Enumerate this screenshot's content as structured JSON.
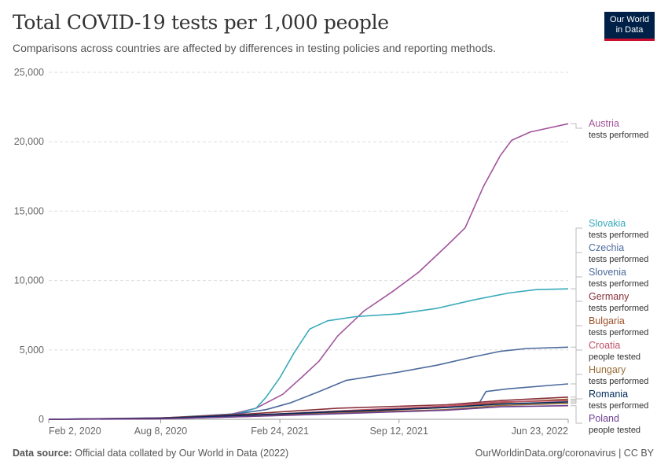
{
  "header": {
    "title": "Total COVID-19 tests per 1,000 people",
    "subtitle": "Comparisons across countries are affected by differences in testing policies and reporting methods."
  },
  "logo": {
    "line1": "Our World",
    "line2": "in Data",
    "bg": "#002147",
    "accent": "#c8102e"
  },
  "footer": {
    "source_label": "Data source:",
    "source_text": "Official data collated by Our World in Data (2022)",
    "right_text": "OurWorldinData.org/coronavirus | CC BY"
  },
  "chart_data": {
    "type": "line",
    "title": "Total COVID-19 tests per 1,000 people",
    "x_ticks": [
      "Feb 2, 2020",
      "Aug 8, 2020",
      "Feb 24, 2021",
      "Sep 12, 2021",
      "Jun 23, 2022"
    ],
    "x_range": [
      "2020-02-02",
      "2022-06-23"
    ],
    "y_ticks": [
      "0",
      "5,000",
      "10,000",
      "15,000",
      "20,000",
      "25,000"
    ],
    "ylim": [
      0,
      25000
    ],
    "grid": true,
    "legend": "right-end labels",
    "series": [
      {
        "name": "Austria",
        "sublabel": "tests performed",
        "color": "#a2559c",
        "points": [
          [
            "2020-02-02",
            0
          ],
          [
            "2020-06-01",
            40
          ],
          [
            "2020-09-01",
            110
          ],
          [
            "2020-12-01",
            330
          ],
          [
            "2021-01-15",
            800
          ],
          [
            "2021-03-01",
            1800
          ],
          [
            "2021-04-01",
            3000
          ],
          [
            "2021-05-01",
            4200
          ],
          [
            "2021-06-01",
            6000
          ],
          [
            "2021-07-15",
            7800
          ],
          [
            "2021-09-01",
            9200
          ],
          [
            "2021-10-15",
            10600
          ],
          [
            "2021-12-01",
            12500
          ],
          [
            "2022-01-01",
            13800
          ],
          [
            "2022-02-01",
            16800
          ],
          [
            "2022-03-01",
            19000
          ],
          [
            "2022-03-20",
            20100
          ],
          [
            "2022-04-20",
            20700
          ],
          [
            "2022-06-23",
            21300
          ]
        ]
      },
      {
        "name": "Slovakia",
        "sublabel": "tests performed",
        "color": "#38aaba",
        "points": [
          [
            "2020-02-02",
            0
          ],
          [
            "2020-08-01",
            70
          ],
          [
            "2020-12-15",
            400
          ],
          [
            "2021-01-15",
            800
          ],
          [
            "2021-02-01",
            1600
          ],
          [
            "2021-02-24",
            3000
          ],
          [
            "2021-03-20",
            4800
          ],
          [
            "2021-04-15",
            6500
          ],
          [
            "2021-05-15",
            7100
          ],
          [
            "2021-07-01",
            7400
          ],
          [
            "2021-09-12",
            7600
          ],
          [
            "2021-11-15",
            8000
          ],
          [
            "2022-01-15",
            8600
          ],
          [
            "2022-03-15",
            9100
          ],
          [
            "2022-05-01",
            9350
          ],
          [
            "2022-06-23",
            9400
          ]
        ]
      },
      {
        "name": "Czechia",
        "sublabel": "tests performed",
        "color": "#4c6a9c",
        "points": [
          [
            "2020-02-02",
            0
          ],
          [
            "2020-09-01",
            120
          ],
          [
            "2020-12-15",
            400
          ],
          [
            "2021-02-01",
            700
          ],
          [
            "2021-03-15",
            1200
          ],
          [
            "2021-05-01",
            2000
          ],
          [
            "2021-06-15",
            2800
          ],
          [
            "2021-09-12",
            3400
          ],
          [
            "2021-11-15",
            3900
          ],
          [
            "2022-01-15",
            4500
          ],
          [
            "2022-03-01",
            4900
          ],
          [
            "2022-04-15",
            5100
          ],
          [
            "2022-06-23",
            5200
          ]
        ]
      },
      {
        "name": "Slovenia",
        "sublabel": "tests performed",
        "color": "#4c6a9c",
        "points": [
          [
            "2020-02-02",
            0
          ],
          [
            "2020-09-01",
            80
          ],
          [
            "2021-01-01",
            250
          ],
          [
            "2021-06-01",
            600
          ],
          [
            "2021-12-01",
            900
          ],
          [
            "2022-01-25",
            1200
          ],
          [
            "2022-02-05",
            2000
          ],
          [
            "2022-03-15",
            2200
          ],
          [
            "2022-06-23",
            2550
          ]
        ]
      },
      {
        "name": "Germany",
        "sublabel": "tests performed",
        "color": "#883039",
        "points": [
          [
            "2020-02-02",
            0
          ],
          [
            "2020-08-01",
            80
          ],
          [
            "2021-01-01",
            380
          ],
          [
            "2021-06-01",
            800
          ],
          [
            "2021-12-01",
            1050
          ],
          [
            "2022-03-01",
            1350
          ],
          [
            "2022-06-23",
            1600
          ]
        ]
      },
      {
        "name": "Bulgaria",
        "sublabel": "tests performed",
        "color": "#9a5129",
        "points": [
          [
            "2020-02-02",
            0
          ],
          [
            "2020-08-01",
            40
          ],
          [
            "2021-01-01",
            250
          ],
          [
            "2021-06-01",
            500
          ],
          [
            "2021-12-01",
            850
          ],
          [
            "2022-03-01",
            1200
          ],
          [
            "2022-06-23",
            1450
          ]
        ]
      },
      {
        "name": "Croatia",
        "sublabel": "people tested",
        "color": "#c15065",
        "points": [
          [
            "2020-02-02",
            0
          ],
          [
            "2020-08-01",
            40
          ],
          [
            "2021-01-01",
            280
          ],
          [
            "2021-06-01",
            600
          ],
          [
            "2021-12-01",
            950
          ],
          [
            "2022-03-01",
            1250
          ],
          [
            "2022-06-23",
            1350
          ]
        ]
      },
      {
        "name": "Hungary",
        "sublabel": "tests performed",
        "color": "#996d39",
        "points": [
          [
            "2020-02-02",
            0
          ],
          [
            "2020-08-01",
            30
          ],
          [
            "2021-01-01",
            200
          ],
          [
            "2021-06-01",
            450
          ],
          [
            "2021-12-01",
            700
          ],
          [
            "2022-03-01",
            1000
          ],
          [
            "2022-06-23",
            1150
          ]
        ]
      },
      {
        "name": "Romania",
        "sublabel": "tests performed",
        "color": "#00295b",
        "points": [
          [
            "2020-02-02",
            0
          ],
          [
            "2020-08-01",
            50
          ],
          [
            "2021-01-01",
            300
          ],
          [
            "2021-06-01",
            550
          ],
          [
            "2021-12-01",
            850
          ],
          [
            "2022-03-01",
            1100
          ],
          [
            "2022-06-23",
            1250
          ]
        ]
      },
      {
        "name": "Poland",
        "sublabel": "people tested",
        "color": "#6d3e91",
        "points": [
          [
            "2020-02-02",
            0
          ],
          [
            "2020-08-01",
            30
          ],
          [
            "2021-01-01",
            200
          ],
          [
            "2021-06-01",
            400
          ],
          [
            "2021-12-01",
            650
          ],
          [
            "2022-03-01",
            900
          ],
          [
            "2022-06-23",
            980
          ]
        ]
      }
    ]
  }
}
